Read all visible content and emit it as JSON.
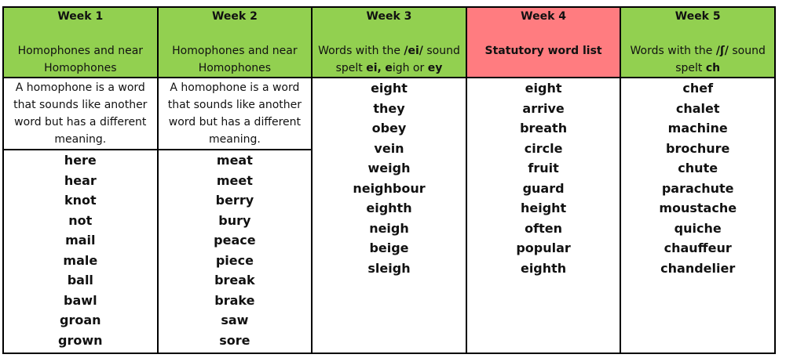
{
  "columns": [
    {
      "week": "Week 1",
      "title": "Homophones and near Homophones",
      "definition": "A homophone is a word that sounds like another word but has a different meaning.",
      "words": [
        "here",
        "hear",
        "knot",
        "not",
        "mail",
        "male",
        "ball",
        "bawl",
        "groan",
        "grown"
      ]
    },
    {
      "week": "Week 2",
      "title": "Homophones and near Homophones",
      "definition": "A homophone is a word that sounds like another word but has a different meaning.",
      "words": [
        "meat",
        "meet",
        "berry",
        "bury",
        "peace",
        "piece",
        "break",
        "brake",
        "saw",
        "sore"
      ]
    },
    {
      "week": "Week 3",
      "title_parts": [
        "Words with the ",
        "/ei/",
        " sound spelt ",
        "ei,",
        " ",
        "e",
        "igh or ",
        "ey"
      ],
      "words": [
        "eight",
        "they",
        "obey",
        "vein",
        "weigh",
        "neighbour",
        "eighth",
        "neigh",
        "beige",
        "sleigh"
      ]
    },
    {
      "week": "Week 4",
      "title": "Statutory word list",
      "words": [
        "eight",
        "arrive",
        "breath",
        "circle",
        "fruit",
        "guard",
        "height",
        "often",
        "popular",
        "eighth"
      ]
    },
    {
      "week": "Week 5",
      "title_parts": [
        "Words with the ",
        "/ʃ/",
        " sound spelt ",
        "ch"
      ],
      "words": [
        "chef",
        "chalet",
        "machine",
        "brochure",
        "chute",
        "parachute",
        "moustache",
        "quiche",
        "chauffeur",
        "chandelier"
      ]
    }
  ],
  "colors": {
    "header_green": "#92d050",
    "header_red": "#ff7c80"
  }
}
